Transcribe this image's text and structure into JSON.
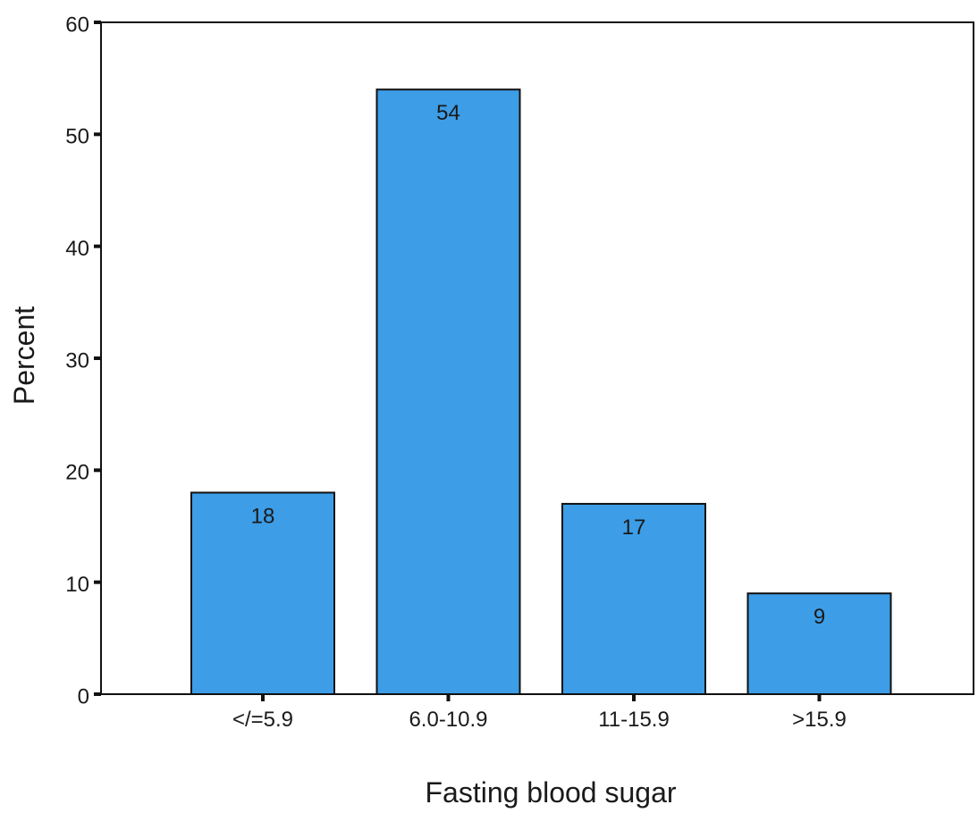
{
  "chart_data": {
    "type": "bar",
    "categories": [
      "</=5.9",
      "6.0-10.9",
      "11-15.9",
      ">15.9"
    ],
    "values": [
      18,
      54,
      17,
      9
    ],
    "data_labels": [
      "18",
      "54",
      "17",
      "9"
    ],
    "title": "",
    "xlabel": "Fasting blood sugar",
    "ylabel": "Percent",
    "ylim": [
      0,
      60
    ],
    "yticks": [
      0,
      10,
      20,
      30,
      40,
      50,
      60
    ],
    "grid": false,
    "legend": "none",
    "colors": {
      "bar": "#3d9de6",
      "bar_stroke": "#111111",
      "axis": "#111111"
    }
  }
}
